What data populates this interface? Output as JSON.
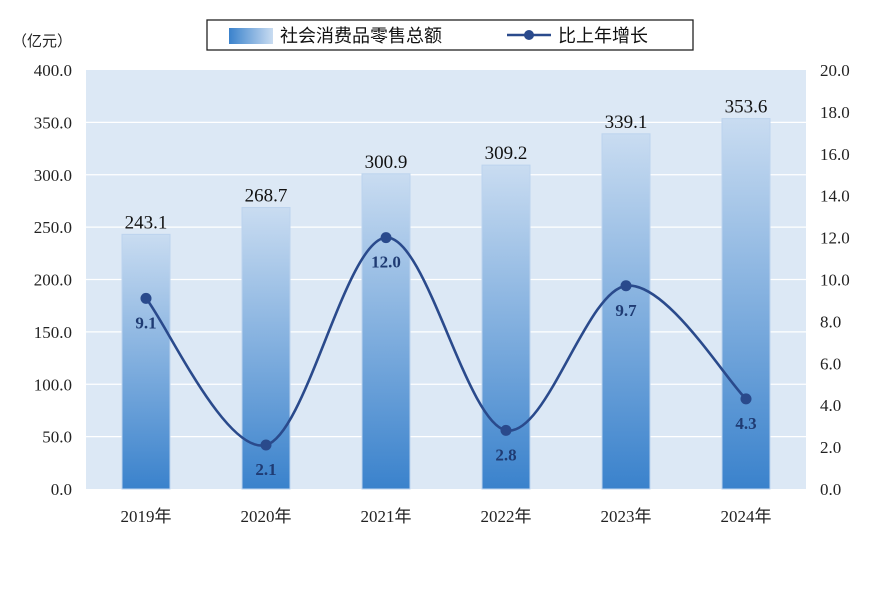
{
  "chart_data": {
    "type": "bar+line",
    "unit_label": "（亿元）",
    "categories": [
      "2019年",
      "2020年",
      "2021年",
      "2022年",
      "2023年",
      "2024年"
    ],
    "series": [
      {
        "name": "社会消费品零售总额",
        "type": "bar",
        "axis": "left",
        "values": [
          243.1,
          268.7,
          300.9,
          309.2,
          339.1,
          353.6
        ],
        "labels": [
          "243.1",
          "268.7",
          "300.9",
          "309.2",
          "339.1",
          "353.6"
        ]
      },
      {
        "name": "比上年增长",
        "type": "line",
        "axis": "right",
        "values": [
          9.1,
          2.1,
          12.0,
          2.8,
          9.7,
          4.3
        ],
        "labels": [
          "9.1",
          "2.1",
          "12.0",
          "2.8",
          "9.7",
          "4.3"
        ]
      }
    ],
    "y_left": {
      "range": [
        0,
        400
      ],
      "ticks": [
        "0.0",
        "50.0",
        "100.0",
        "150.0",
        "200.0",
        "250.0",
        "300.0",
        "350.0",
        "400.0"
      ]
    },
    "y_right": {
      "range": [
        0,
        20
      ],
      "ticks": [
        "0.0",
        "2.0",
        "4.0",
        "6.0",
        "8.0",
        "10.0",
        "12.0",
        "14.0",
        "16.0",
        "18.0",
        "20.0"
      ]
    },
    "legend_position": "top-center",
    "grid": true
  },
  "colors": {
    "plot_bg": "#dce8f5",
    "grid": "#ffffff",
    "bar_top": "#c9dcf1",
    "bar_bottom": "#3a82cc",
    "line": "#2a4a8c",
    "marker": "#2a4a8c"
  }
}
